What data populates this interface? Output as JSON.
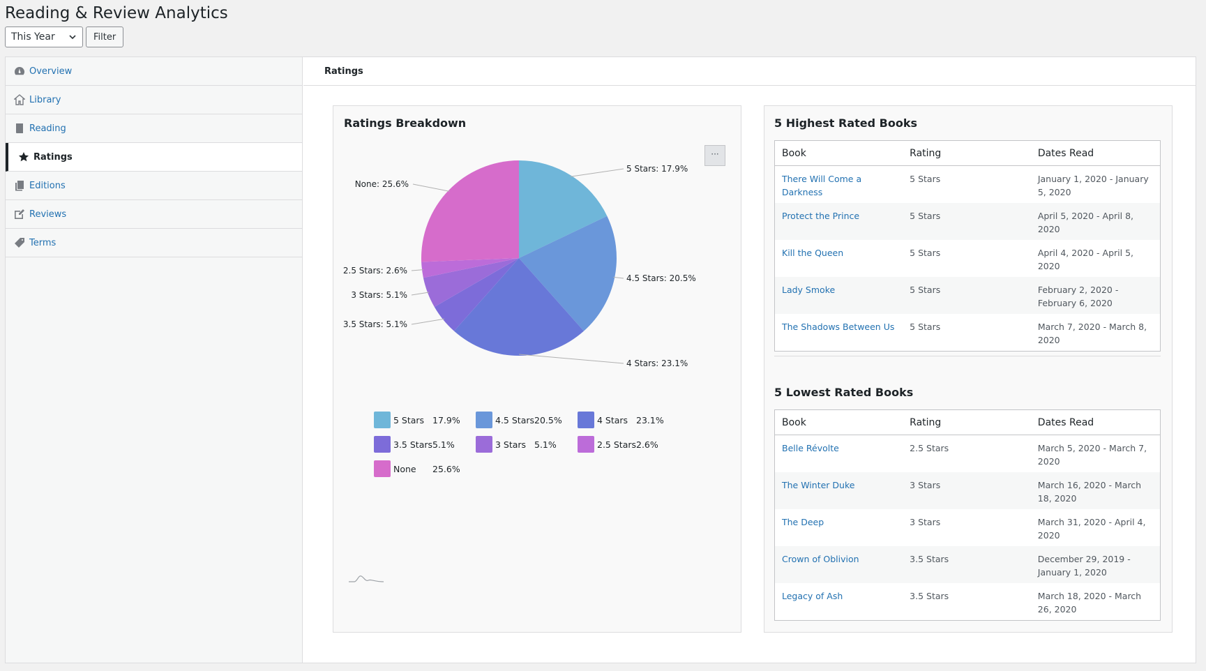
{
  "page": {
    "title": "Reading & Review Analytics",
    "period_select": "This Year",
    "filter_label": "Filter"
  },
  "sidebar": {
    "items": [
      {
        "label": "Overview",
        "icon": "dashboard-icon"
      },
      {
        "label": "Library",
        "icon": "home-icon"
      },
      {
        "label": "Reading",
        "icon": "book-icon"
      },
      {
        "label": "Ratings",
        "icon": "star-icon",
        "active": true
      },
      {
        "label": "Editions",
        "icon": "editions-icon"
      },
      {
        "label": "Reviews",
        "icon": "edit-icon"
      },
      {
        "label": "Terms",
        "icon": "tag-icon"
      }
    ]
  },
  "main": {
    "header": "Ratings"
  },
  "chart_data": {
    "type": "pie",
    "title": "Ratings Breakdown",
    "menu_label": "···",
    "slices": [
      {
        "label": "5 Stars",
        "value": 17.9,
        "display": "17.9%",
        "color": "#6fb6d9"
      },
      {
        "label": "4.5 Stars",
        "value": 20.5,
        "display": "20.5%",
        "color": "#6a97da"
      },
      {
        "label": "4 Stars",
        "value": 23.1,
        "display": "23.1%",
        "color": "#6878d8"
      },
      {
        "label": "3.5 Stars",
        "value": 5.1,
        "display": "5.1%",
        "color": "#7d6cd9"
      },
      {
        "label": "3 Stars",
        "value": 5.1,
        "display": "5.1%",
        "color": "#9b6cd9"
      },
      {
        "label": "2.5 Stars",
        "value": 2.6,
        "display": "2.6%",
        "color": "#bc6cd9"
      },
      {
        "label": "None",
        "value": 25.6,
        "display": "25.6%",
        "color": "#d66ccb"
      }
    ]
  },
  "highest": {
    "title": "5 Highest Rated Books",
    "columns": [
      "Book",
      "Rating",
      "Dates Read"
    ],
    "rows": [
      {
        "book": "There Will Come a Darkness",
        "rating": "5 Stars",
        "dates": "January 1, 2020 - January 5, 2020"
      },
      {
        "book": "Protect the Prince",
        "rating": "5 Stars",
        "dates": "April 5, 2020 - April 8, 2020"
      },
      {
        "book": "Kill the Queen",
        "rating": "5 Stars",
        "dates": "April 4, 2020 - April 5, 2020"
      },
      {
        "book": "Lady Smoke",
        "rating": "5 Stars",
        "dates": "February 2, 2020 - February 6, 2020"
      },
      {
        "book": "The Shadows Between Us",
        "rating": "5 Stars",
        "dates": "March 7, 2020 - March 8, 2020"
      }
    ]
  },
  "lowest": {
    "title": "5 Lowest Rated Books",
    "columns": [
      "Book",
      "Rating",
      "Dates Read"
    ],
    "rows": [
      {
        "book": "Belle Révolte",
        "rating": "2.5 Stars",
        "dates": "March 5, 2020 - March 7, 2020"
      },
      {
        "book": "The Winter Duke",
        "rating": "3 Stars",
        "dates": "March 16, 2020 - March 18, 2020"
      },
      {
        "book": "The Deep",
        "rating": "3 Stars",
        "dates": "March 31, 2020 - April 4, 2020"
      },
      {
        "book": "Crown of Oblivion",
        "rating": "3.5 Stars",
        "dates": "December 29, 2019 - January 1, 2020"
      },
      {
        "book": "Legacy of Ash",
        "rating": "3.5 Stars",
        "dates": "March 18, 2020 - March 26, 2020"
      }
    ]
  }
}
